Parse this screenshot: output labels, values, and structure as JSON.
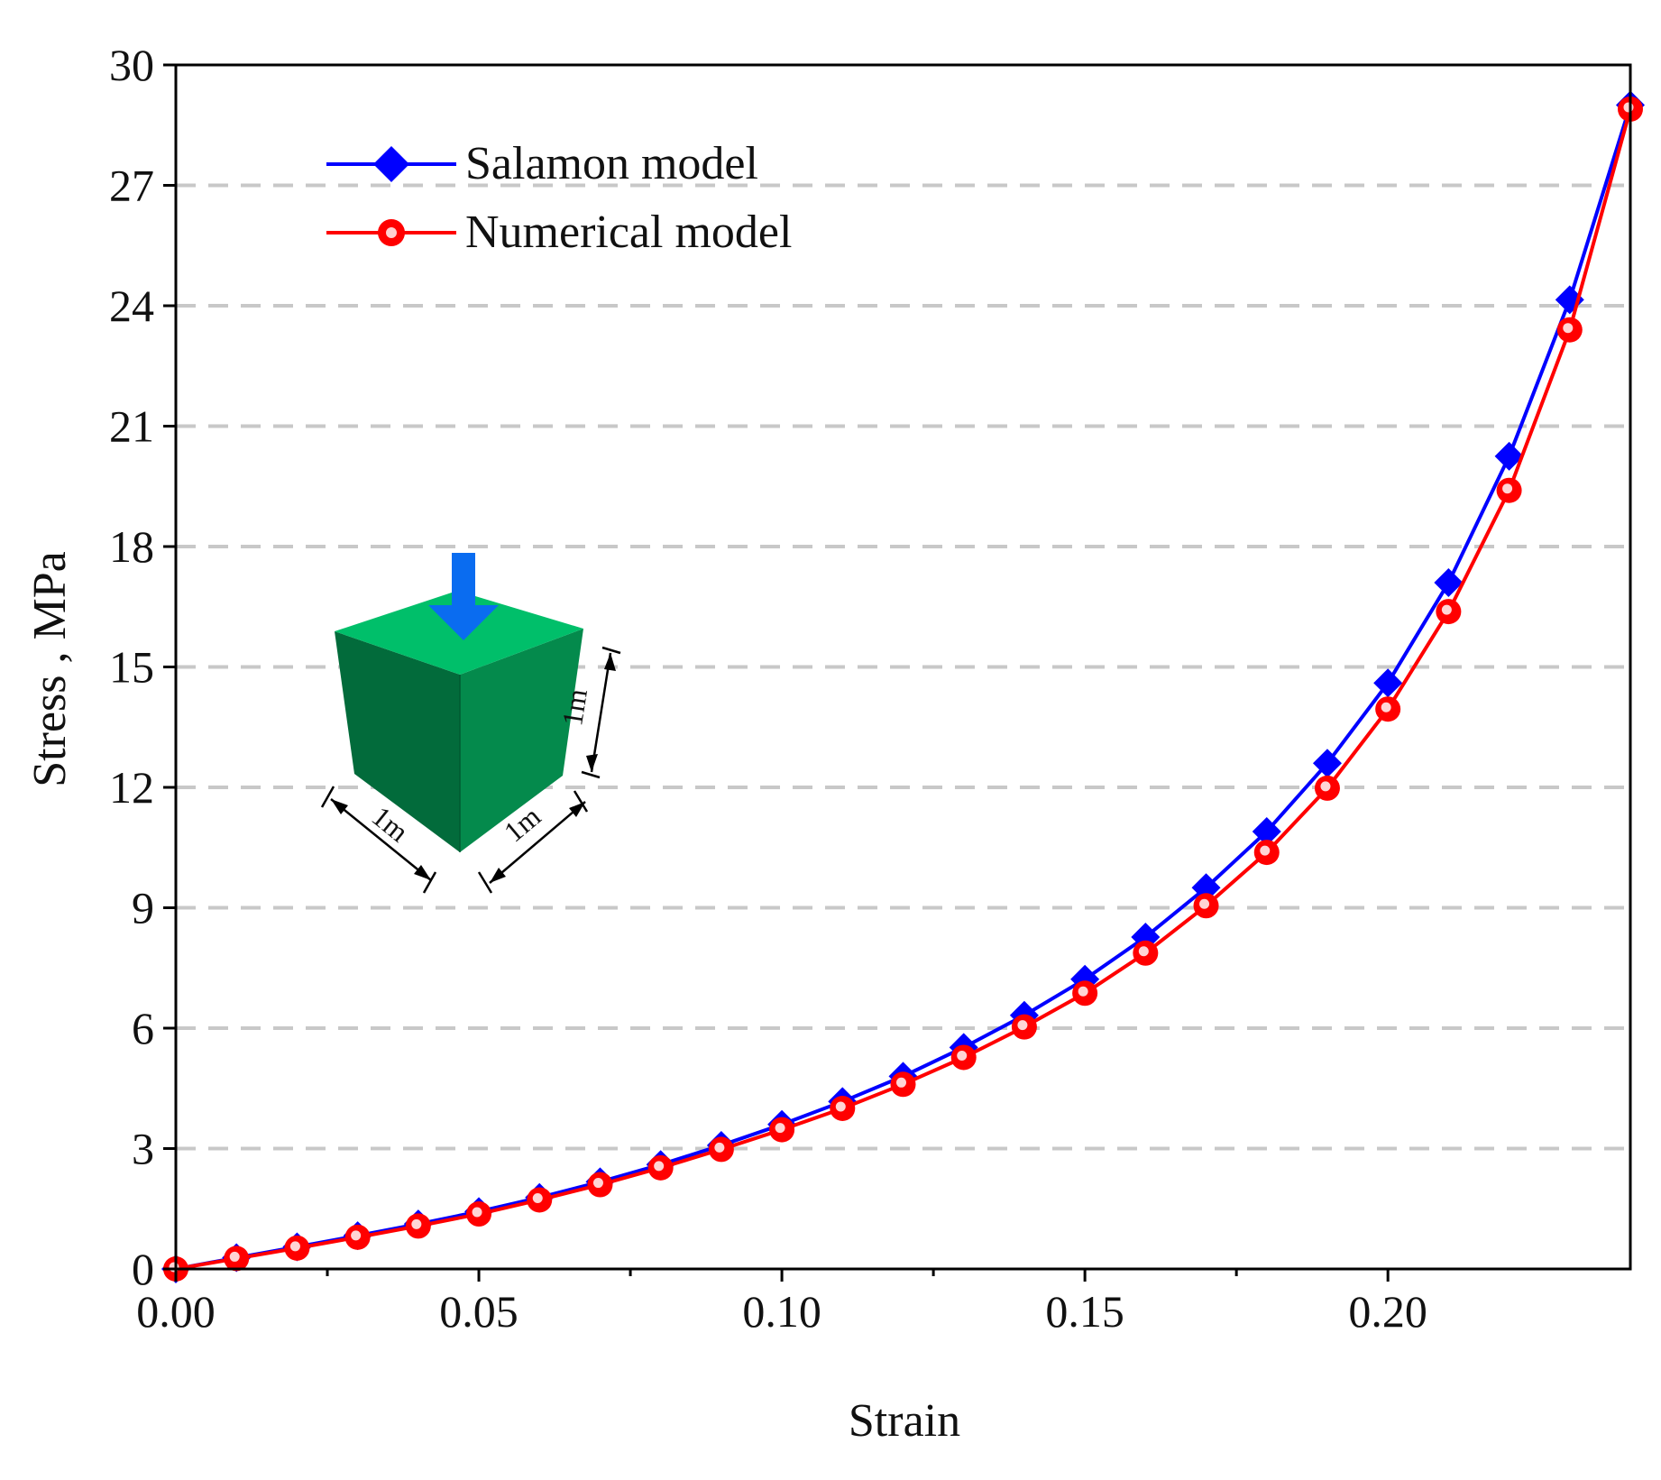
{
  "chart_data": {
    "type": "line",
    "title": "",
    "xlabel": "Strain",
    "ylabel": "Stress , MPa",
    "xlim": [
      0,
      0.24
    ],
    "ylim": [
      0,
      30
    ],
    "grid": "horizontal dashed",
    "legend_position": "top-left",
    "x_ticks": [
      {
        "value": 0.0,
        "label": "0.00"
      },
      {
        "value": 0.05,
        "label": "0.05"
      },
      {
        "value": 0.1,
        "label": "0.10"
      },
      {
        "value": 0.15,
        "label": "0.15"
      },
      {
        "value": 0.2,
        "label": "0.20"
      }
    ],
    "y_ticks": [
      {
        "value": 0,
        "label": "0"
      },
      {
        "value": 3,
        "label": "3"
      },
      {
        "value": 6,
        "label": "6"
      },
      {
        "value": 9,
        "label": "9"
      },
      {
        "value": 12,
        "label": "12"
      },
      {
        "value": 15,
        "label": "15"
      },
      {
        "value": 18,
        "label": "18"
      },
      {
        "value": 21,
        "label": "21"
      },
      {
        "value": 24,
        "label": "24"
      },
      {
        "value": 27,
        "label": "27"
      },
      {
        "value": 30,
        "label": "30"
      }
    ],
    "x": [
      0.0,
      0.01,
      0.02,
      0.03,
      0.04,
      0.05,
      0.06,
      0.07,
      0.08,
      0.09,
      0.1,
      0.11,
      0.12,
      0.13,
      0.14,
      0.15,
      0.16,
      0.17,
      0.18,
      0.19,
      0.2,
      0.21,
      0.22,
      0.23,
      0.24
    ],
    "series": [
      {
        "name": "Salamon model",
        "color": "#0000ff",
        "marker": "diamond",
        "values": [
          0.0,
          0.28,
          0.55,
          0.83,
          1.12,
          1.43,
          1.78,
          2.17,
          2.6,
          3.08,
          3.6,
          4.17,
          4.8,
          5.52,
          6.32,
          7.22,
          8.27,
          9.5,
          10.9,
          12.6,
          14.6,
          17.1,
          20.25,
          24.15,
          29.0
        ]
      },
      {
        "name": "Numerical model",
        "color": "#ff0000",
        "marker": "circle",
        "values": [
          0.0,
          0.26,
          0.52,
          0.79,
          1.07,
          1.37,
          1.72,
          2.1,
          2.52,
          2.98,
          3.47,
          4.0,
          4.6,
          5.27,
          6.03,
          6.87,
          7.87,
          9.05,
          10.38,
          11.98,
          13.95,
          16.38,
          19.4,
          23.4,
          28.9
        ]
      }
    ],
    "inset": {
      "description_labels": [
        "1m",
        "1m",
        "1m"
      ],
      "block_color_top": "#00bf6a",
      "block_color_left": "#026b3b",
      "block_color_right": "#048a4c",
      "arrow_color": "#0a6cf0"
    }
  }
}
